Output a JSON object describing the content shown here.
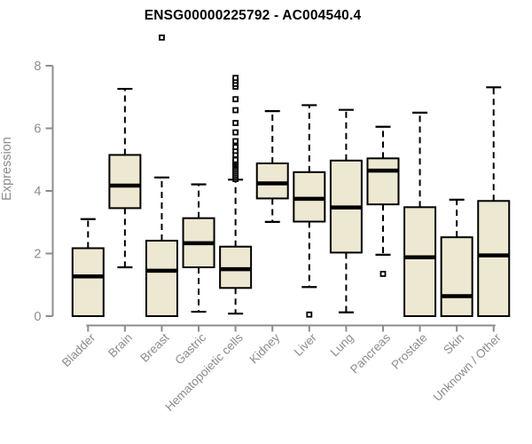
{
  "chart_data": {
    "type": "boxplot",
    "title": "ENSG00000225792 - AC004540.4",
    "ylabel": "Expression",
    "xlabel": "",
    "ylim": [
      0,
      8
    ],
    "yticks": [
      0,
      2,
      4,
      6,
      8
    ],
    "grid": false,
    "legend": "none",
    "categories": [
      "Bladder",
      "Brain",
      "Breast",
      "Gastric",
      "Hematopoietic cells",
      "Kidney",
      "Liver",
      "Lung",
      "Pancreas",
      "Prostate",
      "Skin",
      "Unknown / Other"
    ],
    "boxes": [
      {
        "label": "Bladder",
        "whisker_low": 0,
        "q1": 0,
        "median": 1.27,
        "q3": 2.17,
        "whisker_high": 3.1,
        "outliers": []
      },
      {
        "label": "Brain",
        "whisker_low": 1.56,
        "q1": 3.45,
        "median": 4.17,
        "q3": 5.15,
        "whisker_high": 7.26,
        "outliers": []
      },
      {
        "label": "Breast",
        "whisker_low": 0,
        "q1": 0,
        "median": 1.45,
        "q3": 2.41,
        "whisker_high": 4.43,
        "outliers": [
          8.9
        ]
      },
      {
        "label": "Gastric",
        "whisker_low": 0.14,
        "q1": 1.56,
        "median": 2.33,
        "q3": 3.13,
        "whisker_high": 4.21,
        "outliers": []
      },
      {
        "label": "Hematopoietic cells",
        "whisker_low": 0.08,
        "q1": 0.9,
        "median": 1.5,
        "q3": 2.22,
        "whisker_high": 4.36,
        "outliers": [
          4.38,
          4.44,
          4.5,
          4.56,
          4.62,
          4.68,
          4.74,
          4.8,
          4.85,
          4.9,
          4.95,
          4.99,
          5.15,
          5.28,
          5.4,
          5.59,
          5.87,
          6.17,
          6.58,
          6.93,
          7.33,
          7.42,
          7.52,
          7.61
        ]
      },
      {
        "label": "Kidney",
        "whisker_low": 3.01,
        "q1": 3.76,
        "median": 4.24,
        "q3": 4.88,
        "whisker_high": 6.55,
        "outliers": []
      },
      {
        "label": "Liver",
        "whisker_low": 0.93,
        "q1": 3.02,
        "median": 3.75,
        "q3": 4.6,
        "whisker_high": 6.74,
        "outliers": [
          0.05
        ]
      },
      {
        "label": "Lung",
        "whisker_low": 0.12,
        "q1": 2.03,
        "median": 3.47,
        "q3": 4.97,
        "whisker_high": 6.59,
        "outliers": []
      },
      {
        "label": "Pancreas",
        "whisker_low": 1.96,
        "q1": 3.57,
        "median": 4.65,
        "q3": 5.04,
        "whisker_high": 6.05,
        "outliers": [
          1.35
        ]
      },
      {
        "label": "Prostate",
        "whisker_low": 0,
        "q1": 0,
        "median": 1.88,
        "q3": 3.48,
        "whisker_high": 6.5,
        "outliers": []
      },
      {
        "label": "Skin",
        "whisker_low": 0,
        "q1": 0,
        "median": 0.64,
        "q3": 2.52,
        "whisker_high": 3.72,
        "outliers": []
      },
      {
        "label": "Unknown / Other",
        "whisker_low": 0,
        "q1": 0,
        "median": 1.94,
        "q3": 3.68,
        "whisker_high": 7.31,
        "outliers": []
      }
    ],
    "colors": {
      "box_fill": "#EDE8D1",
      "box_stroke": "#000000",
      "median": "#000000",
      "whisker": "#000000",
      "outlier_stroke": "#000000",
      "axis": "#8C8C8C",
      "tick_label": "#8C8C8C",
      "axis_title": "#8C8C8C",
      "title": "#000000",
      "background": "#FFFFFF"
    }
  }
}
